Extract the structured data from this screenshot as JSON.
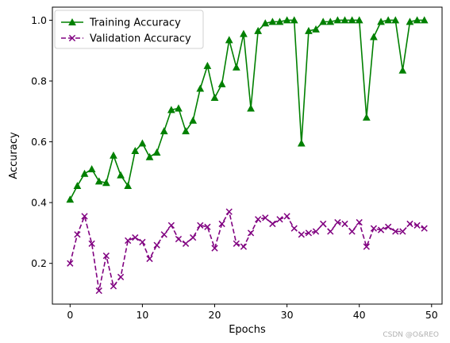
{
  "chart_data": {
    "type": "line",
    "xlabel": "Epochs",
    "ylabel": "Accuracy",
    "xlim": [
      -2.45,
      51.45
    ],
    "ylim": [
      0.066,
      1.043
    ],
    "xticks": [
      0,
      10,
      20,
      30,
      40,
      50
    ],
    "yticks": [
      0.2,
      0.4,
      0.6,
      0.8,
      1.0
    ],
    "grid": false,
    "legend_position": "upper left",
    "x": [
      0,
      1,
      2,
      3,
      4,
      5,
      6,
      7,
      8,
      9,
      10,
      11,
      12,
      13,
      14,
      15,
      16,
      17,
      18,
      19,
      20,
      21,
      22,
      23,
      24,
      25,
      26,
      27,
      28,
      29,
      30,
      31,
      32,
      33,
      34,
      35,
      36,
      37,
      38,
      39,
      40,
      41,
      42,
      43,
      44,
      45,
      46,
      47,
      48,
      49
    ],
    "series": [
      {
        "name": "Training Accuracy",
        "color": "#008000",
        "marker": "triangle-up",
        "linestyle": "solid",
        "values": [
          0.41,
          0.455,
          0.495,
          0.51,
          0.47,
          0.465,
          0.555,
          0.49,
          0.455,
          0.57,
          0.595,
          0.55,
          0.565,
          0.635,
          0.705,
          0.71,
          0.635,
          0.67,
          0.775,
          0.85,
          0.745,
          0.79,
          0.935,
          0.845,
          0.955,
          0.71,
          0.965,
          0.99,
          0.995,
          0.995,
          1.0,
          1.0,
          0.595,
          0.965,
          0.97,
          0.995,
          0.995,
          1.0,
          1.0,
          1.0,
          1.0,
          0.68,
          0.945,
          0.995,
          1.0,
          1.0,
          0.835,
          0.995,
          1.0,
          1.0
        ]
      },
      {
        "name": "Validation Accuracy",
        "color": "#800080",
        "marker": "x",
        "linestyle": "dashed",
        "values": [
          0.2,
          0.295,
          0.355,
          0.265,
          0.11,
          0.225,
          0.125,
          0.155,
          0.275,
          0.285,
          0.27,
          0.215,
          0.26,
          0.295,
          0.325,
          0.28,
          0.265,
          0.285,
          0.325,
          0.32,
          0.25,
          0.33,
          0.37,
          0.265,
          0.255,
          0.3,
          0.345,
          0.35,
          0.33,
          0.345,
          0.355,
          0.315,
          0.295,
          0.3,
          0.305,
          0.33,
          0.305,
          0.335,
          0.33,
          0.305,
          0.335,
          0.255,
          0.315,
          0.31,
          0.32,
          0.305,
          0.305,
          0.33,
          0.325,
          0.315
        ]
      }
    ]
  },
  "watermark_text": "CSDN @O&REO"
}
